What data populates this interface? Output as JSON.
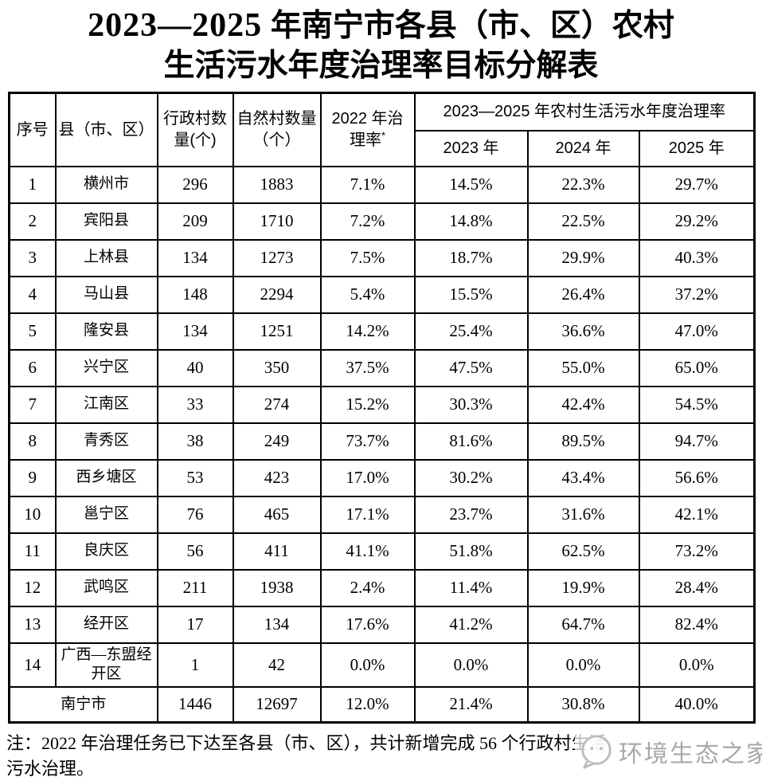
{
  "title": {
    "num": "2023—2025",
    "line1_cn": " 年南宁市各县（市、区）农村",
    "line2": "生活污水年度治理率目标分解表"
  },
  "table": {
    "headers": {
      "index": "序号",
      "county": "县（市、区）",
      "admin": "行政村数量(个)",
      "natural": "自然村数量（个）",
      "rate2022": "2022 年治理率",
      "rate2022_mark": "*",
      "group": "2023—2025 年农村生活污水年度治理率",
      "y2023": "2023 年",
      "y2024": "2024 年",
      "y2025": "2025 年"
    },
    "rows": [
      {
        "no": "1",
        "county": "横州市",
        "admin": "296",
        "natural": "1883",
        "r2022": "7.1%",
        "r2023": "14.5%",
        "r2024": "22.3%",
        "r2025": "29.7%"
      },
      {
        "no": "2",
        "county": "宾阳县",
        "admin": "209",
        "natural": "1710",
        "r2022": "7.2%",
        "r2023": "14.8%",
        "r2024": "22.5%",
        "r2025": "29.2%"
      },
      {
        "no": "3",
        "county": "上林县",
        "admin": "134",
        "natural": "1273",
        "r2022": "7.5%",
        "r2023": "18.7%",
        "r2024": "29.9%",
        "r2025": "40.3%"
      },
      {
        "no": "4",
        "county": "马山县",
        "admin": "148",
        "natural": "2294",
        "r2022": "5.4%",
        "r2023": "15.5%",
        "r2024": "26.4%",
        "r2025": "37.2%"
      },
      {
        "no": "5",
        "county": "隆安县",
        "admin": "134",
        "natural": "1251",
        "r2022": "14.2%",
        "r2023": "25.4%",
        "r2024": "36.6%",
        "r2025": "47.0%"
      },
      {
        "no": "6",
        "county": "兴宁区",
        "admin": "40",
        "natural": "350",
        "r2022": "37.5%",
        "r2023": "47.5%",
        "r2024": "55.0%",
        "r2025": "65.0%"
      },
      {
        "no": "7",
        "county": "江南区",
        "admin": "33",
        "natural": "274",
        "r2022": "15.2%",
        "r2023": "30.3%",
        "r2024": "42.4%",
        "r2025": "54.5%"
      },
      {
        "no": "8",
        "county": "青秀区",
        "admin": "38",
        "natural": "249",
        "r2022": "73.7%",
        "r2023": "81.6%",
        "r2024": "89.5%",
        "r2025": "94.7%"
      },
      {
        "no": "9",
        "county": "西乡塘区",
        "admin": "53",
        "natural": "423",
        "r2022": "17.0%",
        "r2023": "30.2%",
        "r2024": "43.4%",
        "r2025": "56.6%"
      },
      {
        "no": "10",
        "county": "邕宁区",
        "admin": "76",
        "natural": "465",
        "r2022": "17.1%",
        "r2023": "23.7%",
        "r2024": "31.6%",
        "r2025": "42.1%"
      },
      {
        "no": "11",
        "county": "良庆区",
        "admin": "56",
        "natural": "411",
        "r2022": "41.1%",
        "r2023": "51.8%",
        "r2024": "62.5%",
        "r2025": "73.2%"
      },
      {
        "no": "12",
        "county": "武鸣区",
        "admin": "211",
        "natural": "1938",
        "r2022": "2.4%",
        "r2023": "11.4%",
        "r2024": "19.9%",
        "r2025": "28.4%"
      },
      {
        "no": "13",
        "county": "经开区",
        "admin": "17",
        "natural": "134",
        "r2022": "17.6%",
        "r2023": "41.2%",
        "r2024": "64.7%",
        "r2025": "82.4%"
      },
      {
        "no": "14",
        "county": "广西—东盟经开区",
        "admin": "1",
        "natural": "42",
        "r2022": "0.0%",
        "r2023": "0.0%",
        "r2024": "0.0%",
        "r2025": "0.0%"
      }
    ],
    "total": {
      "label": "南宁市",
      "admin": "1446",
      "natural": "12697",
      "r2022": "12.0%",
      "r2023": "21.4%",
      "r2024": "30.8%",
      "r2025": "40.0%"
    }
  },
  "note": {
    "line1": "注：2022 年治理任务已下达至各县（市、区），共计新增完成 56 个行政村生活",
    "line2": "污水治理。"
  },
  "watermark": {
    "text": "环境生态之家"
  },
  "colors": {
    "border": "#000000",
    "text": "#000000",
    "watermark_gray": "#a8a8a8"
  }
}
